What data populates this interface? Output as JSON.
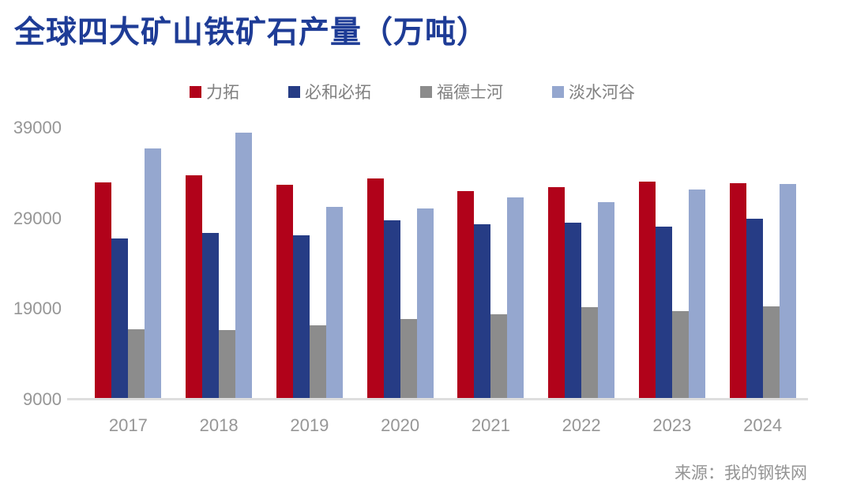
{
  "title": "全球四大矿山铁矿石产量（万吨）",
  "source": "来源：我的钢铁网",
  "colors": {
    "title": "#1e3c96",
    "axis_text": "#969696",
    "axis_line": "#dedede",
    "legend_text": "#808080",
    "series_red": "#b1021a",
    "series_dark_blue": "#263c85",
    "series_gray": "#8c8c8c",
    "series_light_blue": "#95a7cf"
  },
  "chart_data": {
    "type": "bar",
    "title": "全球四大矿山铁矿石产量（万吨）",
    "unit": "万吨",
    "categories": [
      "2017",
      "2018",
      "2019",
      "2020",
      "2021",
      "2022",
      "2023",
      "2024"
    ],
    "series": [
      {
        "name": "力拓",
        "color": "#b1021a",
        "values": [
          32900,
          33700,
          32600,
          33300,
          31900,
          32400,
          33000,
          32800
        ]
      },
      {
        "name": "必和必拓",
        "color": "#263c85",
        "values": [
          26700,
          27300,
          27000,
          28700,
          28300,
          28400,
          28000,
          28900
        ]
      },
      {
        "name": "福德士河",
        "color": "#8c8c8c",
        "values": [
          16700,
          16600,
          17100,
          17800,
          18300,
          19100,
          18700,
          19200
        ]
      },
      {
        "name": "淡水河谷",
        "color": "#95a7cf",
        "values": [
          36600,
          38400,
          30200,
          30000,
          31200,
          30700,
          32100,
          32700
        ]
      }
    ],
    "yticks": [
      9000,
      19000,
      29000,
      39000
    ],
    "ylim": [
      9000,
      40000
    ],
    "xlabel": "",
    "ylabel": "",
    "grid": false,
    "legend_position": "top"
  }
}
